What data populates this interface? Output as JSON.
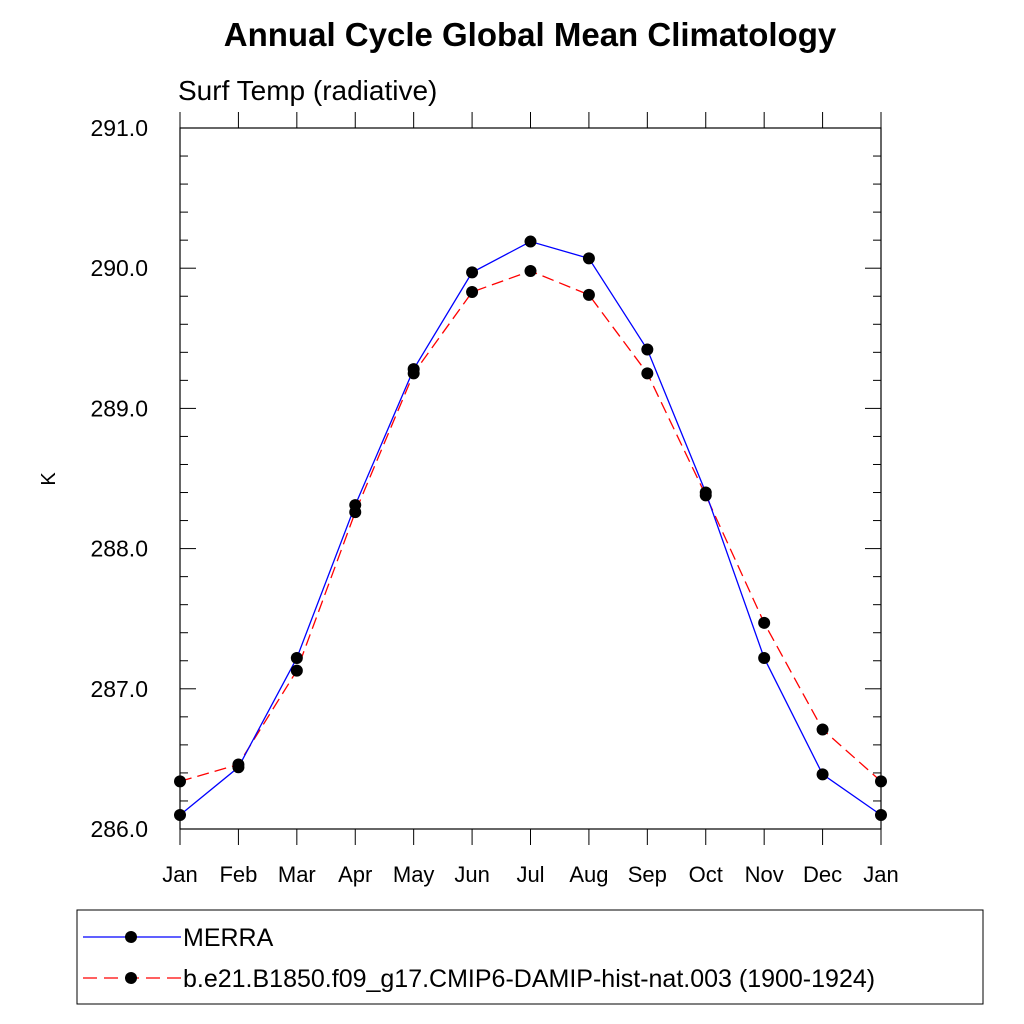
{
  "chart_data": {
    "type": "line",
    "title": "Annual Cycle Global Mean Climatology",
    "subtitle": "Surf Temp (radiative)",
    "xlabel": "",
    "ylabel": "K",
    "categories": [
      "Jan",
      "Feb",
      "Mar",
      "Apr",
      "May",
      "Jun",
      "Jul",
      "Aug",
      "Sep",
      "Oct",
      "Nov",
      "Dec",
      "Jan"
    ],
    "ylim": [
      286.0,
      291.0
    ],
    "yticks": [
      "286.0",
      "287.0",
      "288.0",
      "289.0",
      "290.0",
      "291.0"
    ],
    "ytick_values": [
      286.0,
      287.0,
      288.0,
      289.0,
      290.0,
      291.0
    ],
    "ytick_minor_step": 0.2,
    "grid": false,
    "legend_position": "bottom",
    "series": [
      {
        "name": "MERRA",
        "color": "#0000ff",
        "line_style": "solid",
        "marker": "filled-circle",
        "marker_color": "#000000",
        "values": [
          286.1,
          286.44,
          287.22,
          288.31,
          289.28,
          289.97,
          290.19,
          290.07,
          289.42,
          288.4,
          287.22,
          286.39,
          286.1
        ]
      },
      {
        "name": "b.e21.B1850.f09_g17.CMIP6-DAMIP-hist-nat.003 (1900-1924)",
        "color": "#ff0000",
        "line_style": "dashed",
        "marker": "filled-circle",
        "marker_color": "#000000",
        "values": [
          286.34,
          286.46,
          287.13,
          288.26,
          289.25,
          289.83,
          289.98,
          289.81,
          289.25,
          288.38,
          287.47,
          286.71,
          286.34
        ]
      }
    ]
  }
}
